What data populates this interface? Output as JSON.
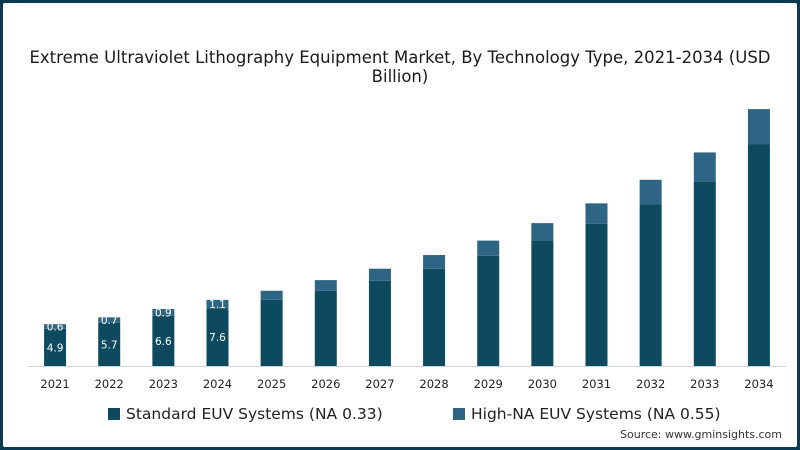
{
  "chart_data": {
    "type": "bar",
    "stacked": true,
    "title": "Extreme Ultraviolet Lithography Equipment Market, By Technology Type, 2021-2034 (USD Billion)",
    "xlabel": "",
    "ylabel": "",
    "categories": [
      "2021",
      "2022",
      "2023",
      "2024",
      "2025",
      "2026",
      "2027",
      "2028",
      "2029",
      "2030",
      "2031",
      "2032",
      "2033",
      "2034"
    ],
    "series": [
      {
        "name": "Standard EUV Systems (NA 0.33)",
        "color": "#0d4a60",
        "values": [
          4.9,
          5.7,
          6.6,
          7.6,
          8.7,
          9.9,
          11.2,
          12.8,
          14.5,
          16.5,
          18.7,
          21.3,
          24.3,
          29.2
        ],
        "labels": [
          "4.9",
          "5.7",
          "6.6",
          "7.6",
          null,
          null,
          null,
          null,
          null,
          null,
          null,
          null,
          null,
          null
        ]
      },
      {
        "name": "High-NA EUV Systems (NA 0.55)",
        "color": "#2e6584",
        "values": [
          0.6,
          0.7,
          0.9,
          1.1,
          1.2,
          1.4,
          1.6,
          1.8,
          2.0,
          2.3,
          2.7,
          3.2,
          3.8,
          4.6
        ],
        "labels": [
          "0.6",
          "0.7",
          "0.9",
          "1.1",
          null,
          null,
          null,
          null,
          null,
          null,
          null,
          null,
          null,
          null
        ]
      }
    ],
    "ylim": [
      0,
      35
    ],
    "grid": false,
    "legend_position": "bottom"
  },
  "source": "Source: www.gminsights.com"
}
